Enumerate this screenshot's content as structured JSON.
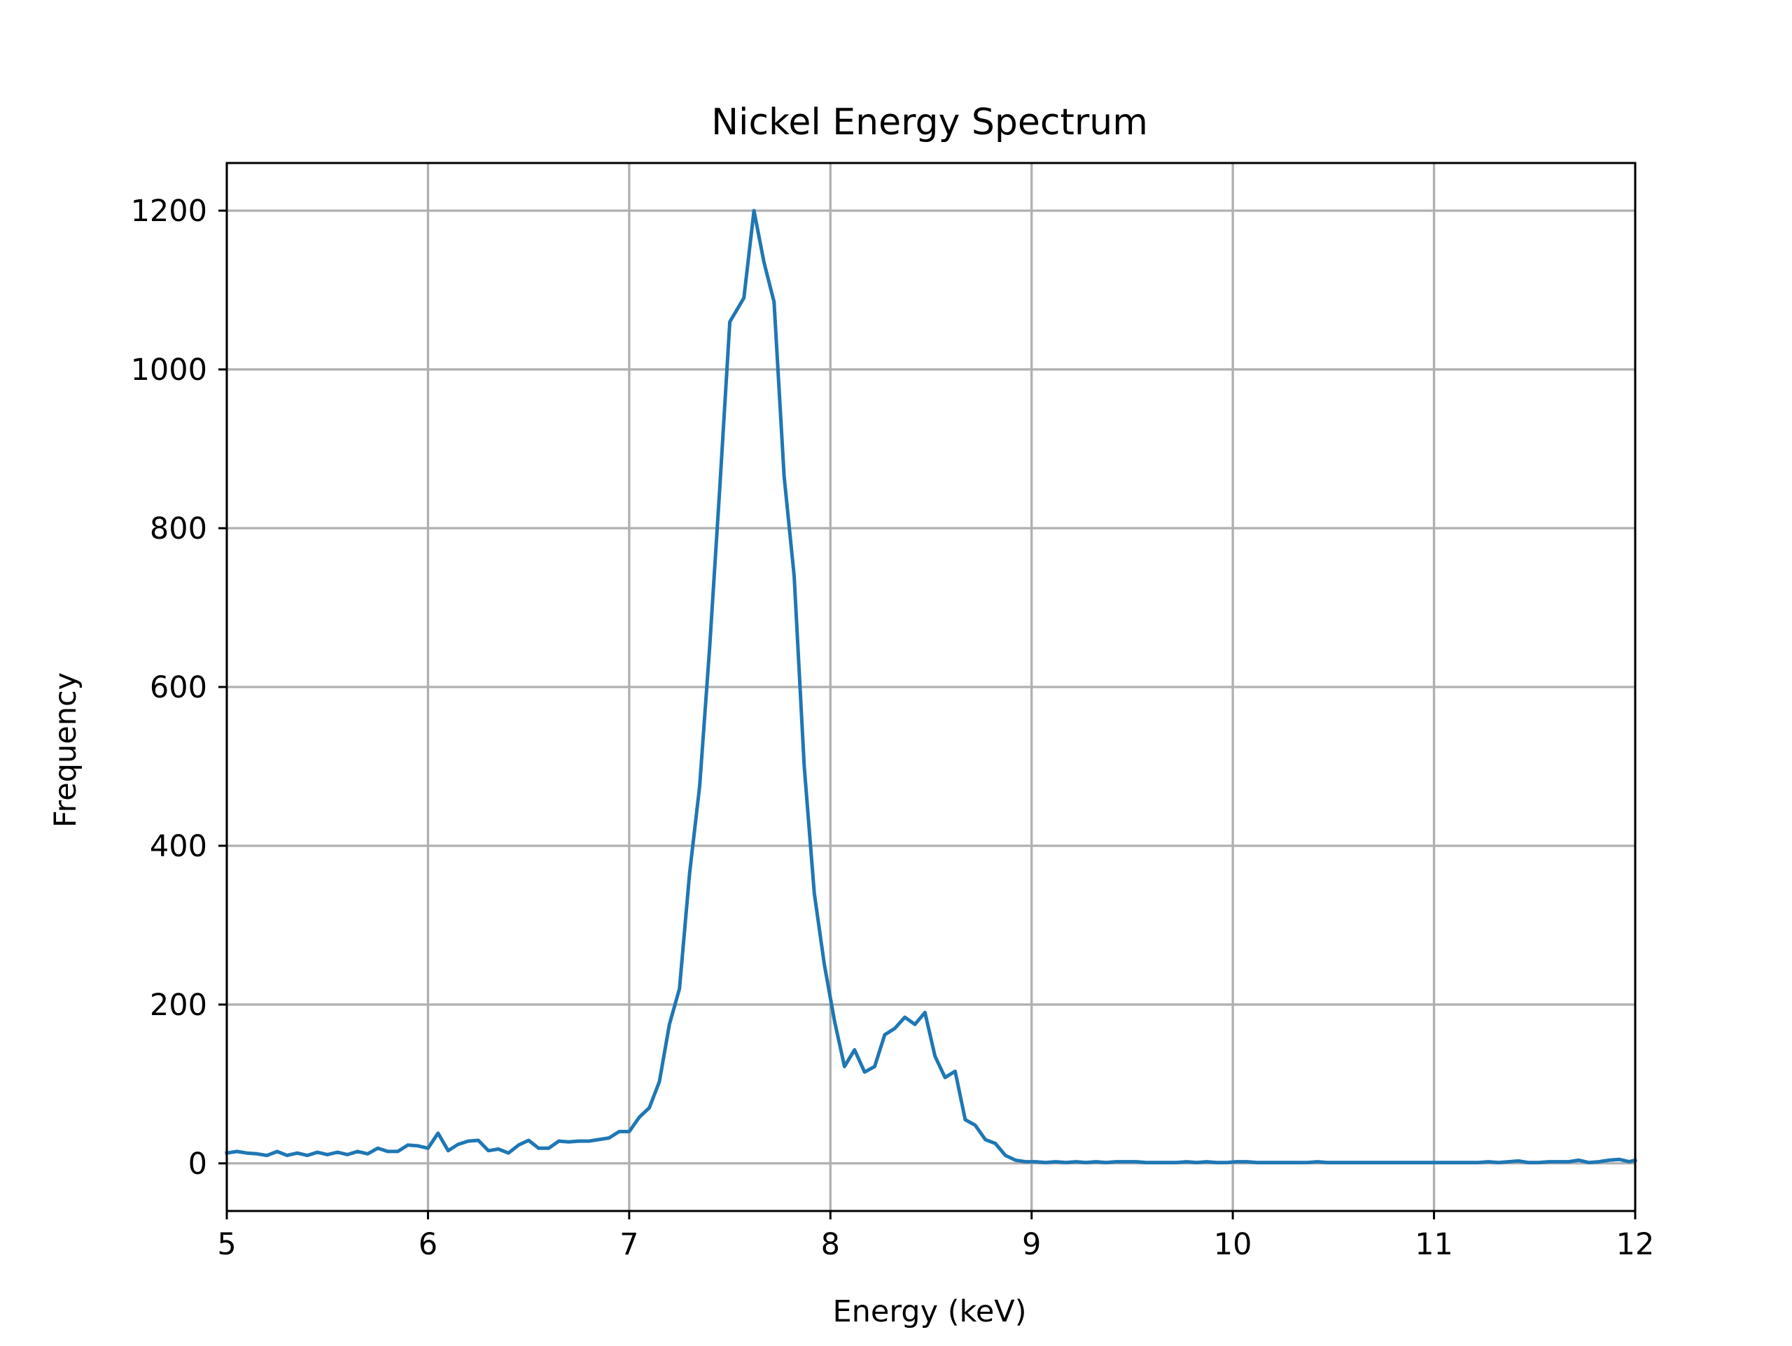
{
  "chart_data": {
    "type": "line",
    "title": "Nickel Energy Spectrum",
    "xlabel": "Energy (keV)",
    "ylabel": "Frequency",
    "xlim": [
      5,
      12
    ],
    "ylim": [
      -60,
      1260
    ],
    "xticks": [
      5,
      6,
      7,
      8,
      9,
      10,
      11,
      12
    ],
    "yticks": [
      0,
      200,
      400,
      600,
      800,
      1000,
      1200
    ],
    "grid": true,
    "color": "#1f77b4",
    "series": [
      {
        "x": [
          5.0,
          5.05,
          5.1,
          5.15,
          5.2,
          5.25,
          5.3,
          5.35,
          5.4,
          5.45,
          5.5,
          5.55,
          5.6,
          5.65,
          5.7,
          5.75,
          5.8,
          5.85,
          5.9,
          5.95,
          6.0,
          6.05,
          6.1,
          6.15,
          6.2,
          6.25,
          6.3,
          6.35,
          6.4,
          6.45,
          6.5,
          6.55,
          6.6,
          6.65,
          6.7,
          6.75,
          6.8,
          6.85,
          6.9,
          6.95,
          7.0,
          7.05,
          7.1,
          7.15,
          7.2,
          7.25,
          7.3,
          7.35,
          7.4,
          7.45,
          7.5,
          7.57,
          7.62,
          7.67,
          7.72,
          7.77,
          7.82,
          7.87,
          7.92,
          7.97,
          8.02,
          8.07,
          8.12,
          8.17,
          8.22,
          8.27,
          8.32,
          8.37,
          8.42,
          8.47,
          8.52,
          8.57,
          8.62,
          8.67,
          8.72,
          8.77,
          8.82,
          8.87,
          8.92,
          8.97,
          9.02,
          9.07,
          9.12,
          9.17,
          9.22,
          9.27,
          9.32,
          9.37,
          9.42,
          9.47,
          9.52,
          9.57,
          9.62,
          9.67,
          9.72,
          9.77,
          9.82,
          9.87,
          9.92,
          9.97,
          10.02,
          10.07,
          10.12,
          10.17,
          10.22,
          10.27,
          10.32,
          10.37,
          10.42,
          10.47,
          10.52,
          10.57,
          10.62,
          10.67,
          10.72,
          10.77,
          10.82,
          10.87,
          10.92,
          10.97,
          11.02,
          11.07,
          11.12,
          11.17,
          11.22,
          11.27,
          11.32,
          11.37,
          11.42,
          11.47,
          11.52,
          11.57,
          11.62,
          11.67,
          11.72,
          11.77,
          11.82,
          11.87,
          11.92,
          11.97,
          12.0
        ],
        "y": [
          13,
          15,
          13,
          12,
          10,
          15,
          10,
          13,
          10,
          14,
          11,
          14,
          11,
          15,
          12,
          19,
          15,
          15,
          23,
          22,
          19,
          38,
          16,
          24,
          28,
          29,
          16,
          18,
          13,
          23,
          29,
          19,
          19,
          28,
          27,
          28,
          28,
          30,
          32,
          40,
          40,
          58,
          70,
          103,
          175,
          220,
          365,
          475,
          650,
          850,
          1060,
          1090,
          1200,
          1135,
          1085,
          865,
          740,
          500,
          340,
          250,
          180,
          122,
          143,
          115,
          122,
          162,
          170,
          184,
          175,
          190,
          135,
          108,
          116,
          55,
          48,
          30,
          25,
          10,
          4,
          2,
          2,
          1,
          2,
          1,
          2,
          1,
          2,
          1,
          2,
          2,
          2,
          1,
          1,
          1,
          1,
          2,
          1,
          2,
          1,
          1,
          2,
          2,
          1,
          1,
          1,
          1,
          1,
          1,
          2,
          1,
          1,
          1,
          1,
          1,
          1,
          1,
          1,
          1,
          1,
          1,
          1,
          1,
          1,
          1,
          1,
          2,
          1,
          2,
          3,
          1,
          1,
          2,
          2,
          2,
          4,
          1,
          2,
          4,
          5,
          2,
          4
        ]
      }
    ]
  }
}
